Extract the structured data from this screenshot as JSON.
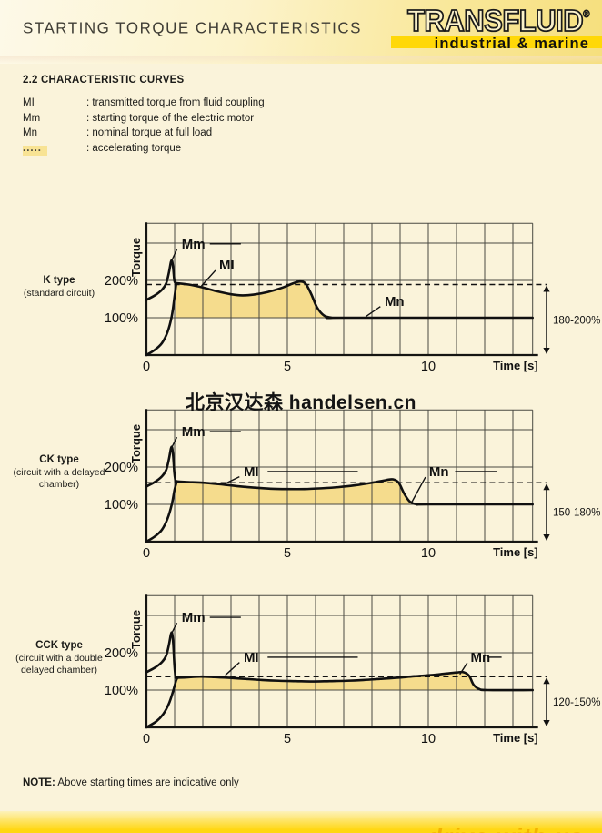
{
  "header": {
    "title": "STARTING TORQUE CHARACTERISTICS",
    "logo": {
      "brand": "TRANSFLUID",
      "registered": "®",
      "tagline": "industrial & marine"
    }
  },
  "section": {
    "heading": "2.2 CHARACTERISTIC CURVES"
  },
  "legend": {
    "items": [
      {
        "term": "MI",
        "description": ": transmitted torque from fluid coupling"
      },
      {
        "term": "Mm",
        "description": ": starting torque of the electric motor"
      },
      {
        "term": "Mn",
        "description": ": nominal torque at full load"
      },
      {
        "term": ".....",
        "description": ": accelerating torque",
        "highlight": true
      }
    ],
    "highlight_color": "#f8e394"
  },
  "watermark": "北京汉达森 handelsen.cn",
  "note": {
    "label": "NOTE:",
    "text": " Above starting times are indicative only"
  },
  "footer": {
    "slogan": "drive with us"
  },
  "colors": {
    "accent_yellow": "#ffd808",
    "area_fill": "#f5dc8d",
    "page_bg": "#faf3da"
  },
  "chart_data": [
    {
      "type": "line",
      "name": "K type",
      "subtitle": "(standard circuit)",
      "ylabel": "Torque",
      "xlabel": "Time [s]",
      "xlim": [
        0,
        13.7
      ],
      "ylim": [
        0,
        353
      ],
      "x_ticks": [
        {
          "t": 0,
          "label": "0"
        },
        {
          "t": 5,
          "label": "5"
        },
        {
          "t": 10,
          "label": "10"
        }
      ],
      "y_ticks": [
        {
          "v": 100,
          "label": "100%"
        },
        {
          "v": 200,
          "label": "200%"
        }
      ],
      "grid_step_x": 1,
      "grid_lines_y": [
        100,
        200,
        300
      ],
      "dashed_level": 189,
      "range_label": "180-200%",
      "series": [
        {
          "name": "Mm",
          "points": [
            [
              0,
              148
            ],
            [
              0.3,
              160
            ],
            [
              0.55,
              175
            ],
            [
              0.7,
              192
            ],
            [
              0.8,
              222
            ],
            [
              0.87,
              250
            ],
            [
              0.91,
              252
            ],
            [
              0.95,
              232
            ],
            [
              0.99,
              200
            ],
            [
              1.03,
              193
            ]
          ]
        },
        {
          "name": "start",
          "points": [
            [
              0,
              0
            ],
            [
              0.3,
              14
            ],
            [
              0.55,
              32
            ],
            [
              0.75,
              62
            ],
            [
              0.9,
              105
            ],
            [
              1.0,
              158
            ],
            [
              1.06,
              193
            ]
          ]
        },
        {
          "name": "MI",
          "points": [
            [
              1.03,
              193
            ],
            [
              1.5,
              189
            ],
            [
              2,
              181
            ],
            [
              2.5,
              171
            ],
            [
              3,
              163
            ],
            [
              3.4,
              160
            ],
            [
              3.8,
              162
            ],
            [
              4.3,
              169
            ],
            [
              4.8,
              180
            ],
            [
              5.2,
              192
            ],
            [
              5.45,
              197
            ],
            [
              5.65,
              191
            ],
            [
              5.85,
              163
            ],
            [
              6.05,
              128
            ],
            [
              6.3,
              106
            ],
            [
              6.6,
              100
            ],
            [
              7,
              100
            ],
            [
              13.7,
              100
            ]
          ]
        }
      ],
      "area": {
        "from": 1.03,
        "to": 6.6,
        "baseline": 100
      },
      "annotations": [
        {
          "text": "Mm",
          "t": 1.25,
          "v": 298,
          "leader": [
            [
              1.08,
              283
            ],
            [
              0.92,
              257
            ]
          ],
          "rule": [
            [
              2.25,
              298
            ],
            [
              3.35,
              298
            ]
          ]
        },
        {
          "text": "MI",
          "t": 2.58,
          "v": 241,
          "leader": [
            [
              2.45,
              227
            ],
            [
              1.95,
              185
            ]
          ]
        },
        {
          "text": "Mn",
          "t": 8.45,
          "v": 144,
          "leader": [
            [
              8.3,
              130
            ],
            [
              7.78,
              103
            ]
          ]
        }
      ]
    },
    {
      "type": "line",
      "name": "CK type",
      "subtitle": "(circuit with a delayed chamber)",
      "ylabel": "Torque",
      "xlabel": "Time [s]",
      "xlim": [
        0,
        13.7
      ],
      "ylim": [
        0,
        353
      ],
      "x_ticks": [
        {
          "t": 0,
          "label": "0"
        },
        {
          "t": 5,
          "label": "5"
        },
        {
          "t": 10,
          "label": "10"
        }
      ],
      "y_ticks": [
        {
          "v": 100,
          "label": "100%"
        },
        {
          "v": 200,
          "label": "200%"
        }
      ],
      "grid_step_x": 1,
      "grid_lines_y": [
        100,
        200,
        300
      ],
      "dashed_level": 158,
      "range_label": "150-180%",
      "series": [
        {
          "name": "Mm",
          "points": [
            [
              0,
              148
            ],
            [
              0.3,
              160
            ],
            [
              0.55,
              175
            ],
            [
              0.7,
              192
            ],
            [
              0.8,
              222
            ],
            [
              0.87,
              250
            ],
            [
              0.91,
              252
            ],
            [
              0.95,
              228
            ],
            [
              0.99,
              185
            ],
            [
              1.03,
              162
            ]
          ]
        },
        {
          "name": "start",
          "points": [
            [
              0,
              0
            ],
            [
              0.3,
              14
            ],
            [
              0.55,
              32
            ],
            [
              0.75,
              62
            ],
            [
              0.9,
              100
            ],
            [
              1.0,
              140
            ],
            [
              1.08,
              162
            ]
          ]
        },
        {
          "name": "MI",
          "points": [
            [
              1.03,
              162
            ],
            [
              1.4,
              160
            ],
            [
              2,
              158
            ],
            [
              2.6,
              154
            ],
            [
              3.2,
              149
            ],
            [
              3.8,
              145
            ],
            [
              4.4,
              142
            ],
            [
              5,
              141
            ],
            [
              5.6,
              141
            ],
            [
              6.2,
              143
            ],
            [
              6.8,
              146
            ],
            [
              7.4,
              151
            ],
            [
              8,
              158
            ],
            [
              8.5,
              165
            ],
            [
              8.75,
              167
            ],
            [
              8.95,
              158
            ],
            [
              9.15,
              128
            ],
            [
              9.35,
              107
            ],
            [
              9.6,
              100
            ],
            [
              10,
              100
            ],
            [
              13.7,
              100
            ]
          ]
        }
      ],
      "area": {
        "from": 1.03,
        "to": 9.6,
        "baseline": 100
      },
      "annotations": [
        {
          "text": "Mm",
          "t": 1.25,
          "v": 295,
          "leader": [
            [
              1.08,
              280
            ],
            [
              0.92,
              256
            ]
          ],
          "rule": [
            [
              2.25,
              295
            ],
            [
              3.35,
              295
            ]
          ]
        },
        {
          "text": "MI",
          "t": 3.45,
          "v": 188,
          "leader": [
            [
              3.3,
              174
            ],
            [
              2.7,
              152
            ]
          ],
          "rule": [
            [
              4.3,
              188
            ],
            [
              7.5,
              188
            ]
          ]
        },
        {
          "text": "Mn",
          "t": 10.03,
          "v": 188,
          "leader": [
            [
              9.9,
              173
            ],
            [
              9.4,
              104
            ]
          ],
          "rule": [
            [
              10.95,
              188
            ],
            [
              12.45,
              188
            ]
          ]
        }
      ]
    },
    {
      "type": "line",
      "name": "CCK type",
      "subtitle": "(circuit with a double delayed chamber)",
      "ylabel": "Torque",
      "xlabel": "Time [s]",
      "xlim": [
        0,
        13.7
      ],
      "ylim": [
        0,
        353
      ],
      "x_ticks": [
        {
          "t": 0,
          "label": "0"
        },
        {
          "t": 5,
          "label": "5"
        },
        {
          "t": 10,
          "label": "10"
        }
      ],
      "y_ticks": [
        {
          "v": 100,
          "label": "100%"
        },
        {
          "v": 200,
          "label": "200%"
        }
      ],
      "grid_step_x": 1,
      "grid_lines_y": [
        100,
        200,
        300
      ],
      "dashed_level": 136,
      "range_label": "120-150%",
      "series": [
        {
          "name": "Mm",
          "points": [
            [
              0,
              148
            ],
            [
              0.3,
              160
            ],
            [
              0.55,
              175
            ],
            [
              0.7,
              192
            ],
            [
              0.8,
              222
            ],
            [
              0.87,
              250
            ],
            [
              0.91,
              252
            ],
            [
              0.95,
              225
            ],
            [
              0.99,
              170
            ],
            [
              1.03,
              133
            ]
          ]
        },
        {
          "name": "start",
          "points": [
            [
              0,
              0
            ],
            [
              0.35,
              16
            ],
            [
              0.6,
              36
            ],
            [
              0.8,
              64
            ],
            [
              0.95,
              98
            ],
            [
              1.05,
              125
            ],
            [
              1.1,
              133
            ]
          ]
        },
        {
          "name": "MI",
          "points": [
            [
              1.03,
              133
            ],
            [
              1.4,
              134
            ],
            [
              1.9,
              136
            ],
            [
              2.4,
              135
            ],
            [
              2.9,
              133
            ],
            [
              3.5,
              130
            ],
            [
              4.1,
              127
            ],
            [
              4.7,
              125
            ],
            [
              5.3,
              124
            ],
            [
              5.9,
              123
            ],
            [
              6.5,
              124
            ],
            [
              7.1,
              125
            ],
            [
              7.7,
              127
            ],
            [
              8.3,
              130
            ],
            [
              8.9,
              133
            ],
            [
              9.5,
              137
            ],
            [
              10.1,
              140
            ],
            [
              10.6,
              144
            ],
            [
              11.0,
              147
            ],
            [
              11.25,
              148
            ],
            [
              11.45,
              138
            ],
            [
              11.6,
              115
            ],
            [
              11.8,
              103
            ],
            [
              12.1,
              100
            ],
            [
              13.7,
              100
            ]
          ]
        }
      ],
      "area": {
        "from": 1.03,
        "to": 12.05,
        "baseline": 100
      },
      "annotations": [
        {
          "text": "Mm",
          "t": 1.25,
          "v": 295,
          "leader": [
            [
              1.08,
              280
            ],
            [
              0.92,
              256
            ]
          ],
          "rule": [
            [
              2.25,
              295
            ],
            [
              3.35,
              295
            ]
          ]
        },
        {
          "text": "MI",
          "t": 3.45,
          "v": 188,
          "leader": [
            [
              3.3,
              174
            ],
            [
              2.8,
              140
            ]
          ],
          "rule": [
            [
              4.3,
              188
            ],
            [
              7.5,
              188
            ]
          ]
        },
        {
          "text": "Mn",
          "t": 11.5,
          "v": 188,
          "leader": [
            [
              11.38,
              173
            ],
            [
              11.12,
              142
            ]
          ],
          "rule": [
            [
              12.15,
              188
            ],
            [
              12.6,
              188
            ]
          ]
        }
      ]
    }
  ]
}
